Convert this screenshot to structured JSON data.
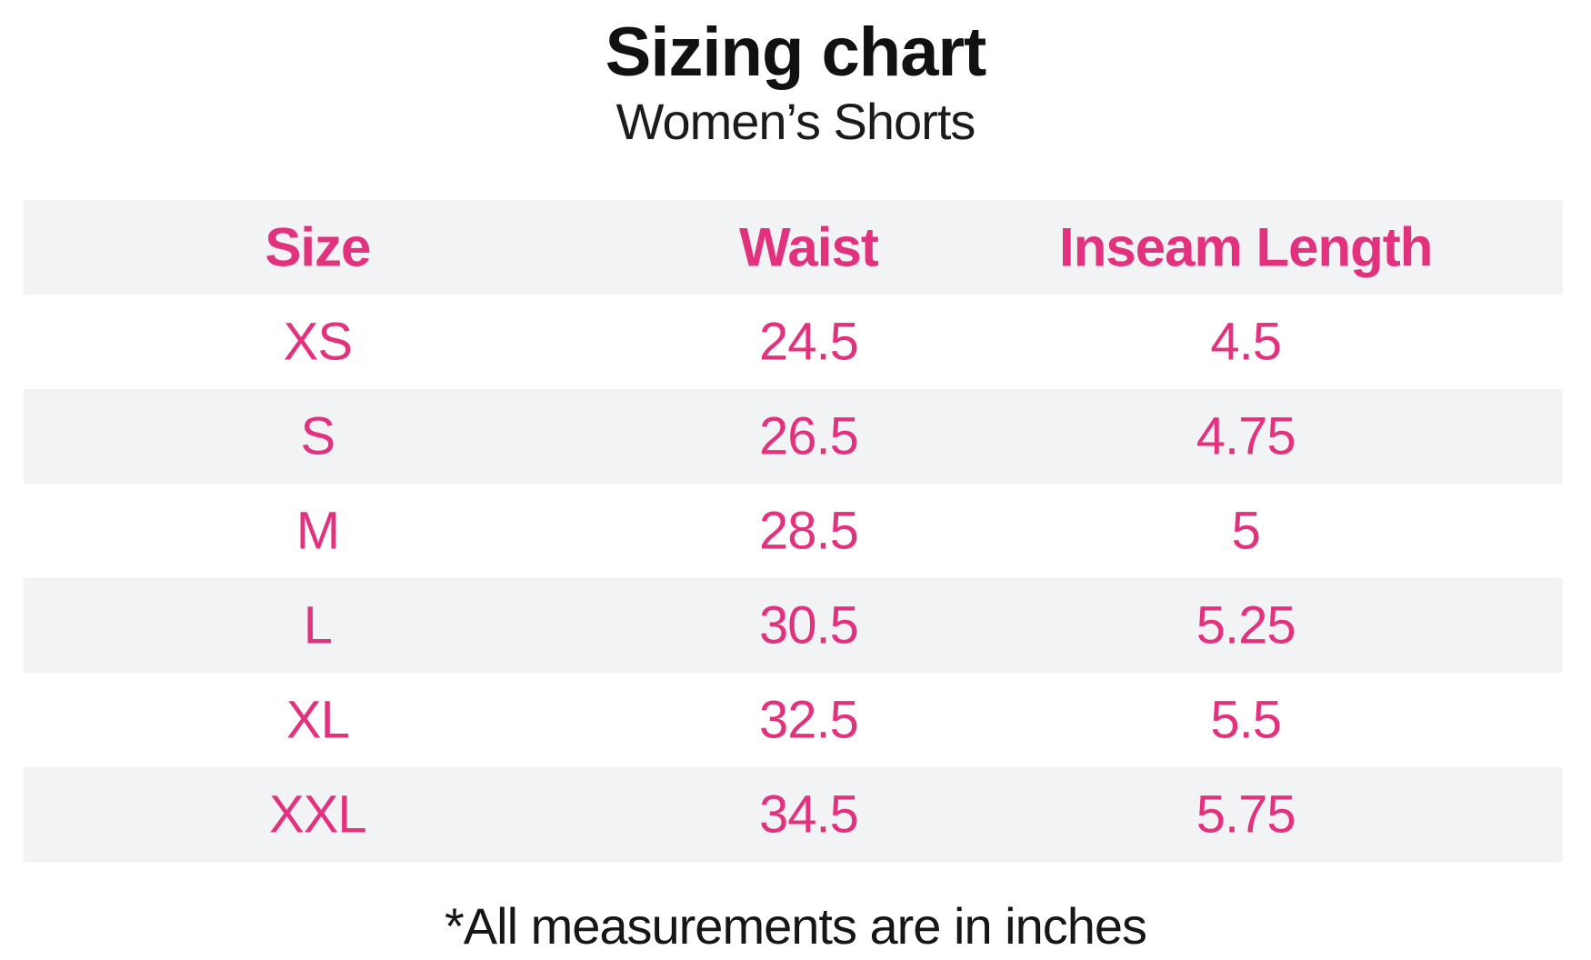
{
  "header": {
    "title": "Sizing chart",
    "subtitle": "Women’s Shorts"
  },
  "colors": {
    "accent_pink": "#e2327e",
    "row_alt_gray": "#f2f3f5",
    "text_black": "#111111",
    "background": "#ffffff"
  },
  "chart_data": {
    "type": "table",
    "title": "Sizing chart",
    "subtitle": "Women's Shorts",
    "columns": [
      "Size",
      "Waist",
      "Inseam Length"
    ],
    "rows": [
      {
        "size": "XS",
        "waist": "24.5",
        "inseam": "4.5"
      },
      {
        "size": "S",
        "waist": "26.5",
        "inseam": "4.75"
      },
      {
        "size": "M",
        "waist": "28.5",
        "inseam": "5"
      },
      {
        "size": "L",
        "waist": "30.5",
        "inseam": "5.25"
      },
      {
        "size": "XL",
        "waist": "32.5",
        "inseam": "5.5"
      },
      {
        "size": "XXL",
        "waist": "34.5",
        "inseam": "5.75"
      }
    ],
    "units": "inches",
    "footnote": "*All measurements are in inches",
    "layout": {
      "alternating_rows": true,
      "header_row_shaded": true
    }
  }
}
